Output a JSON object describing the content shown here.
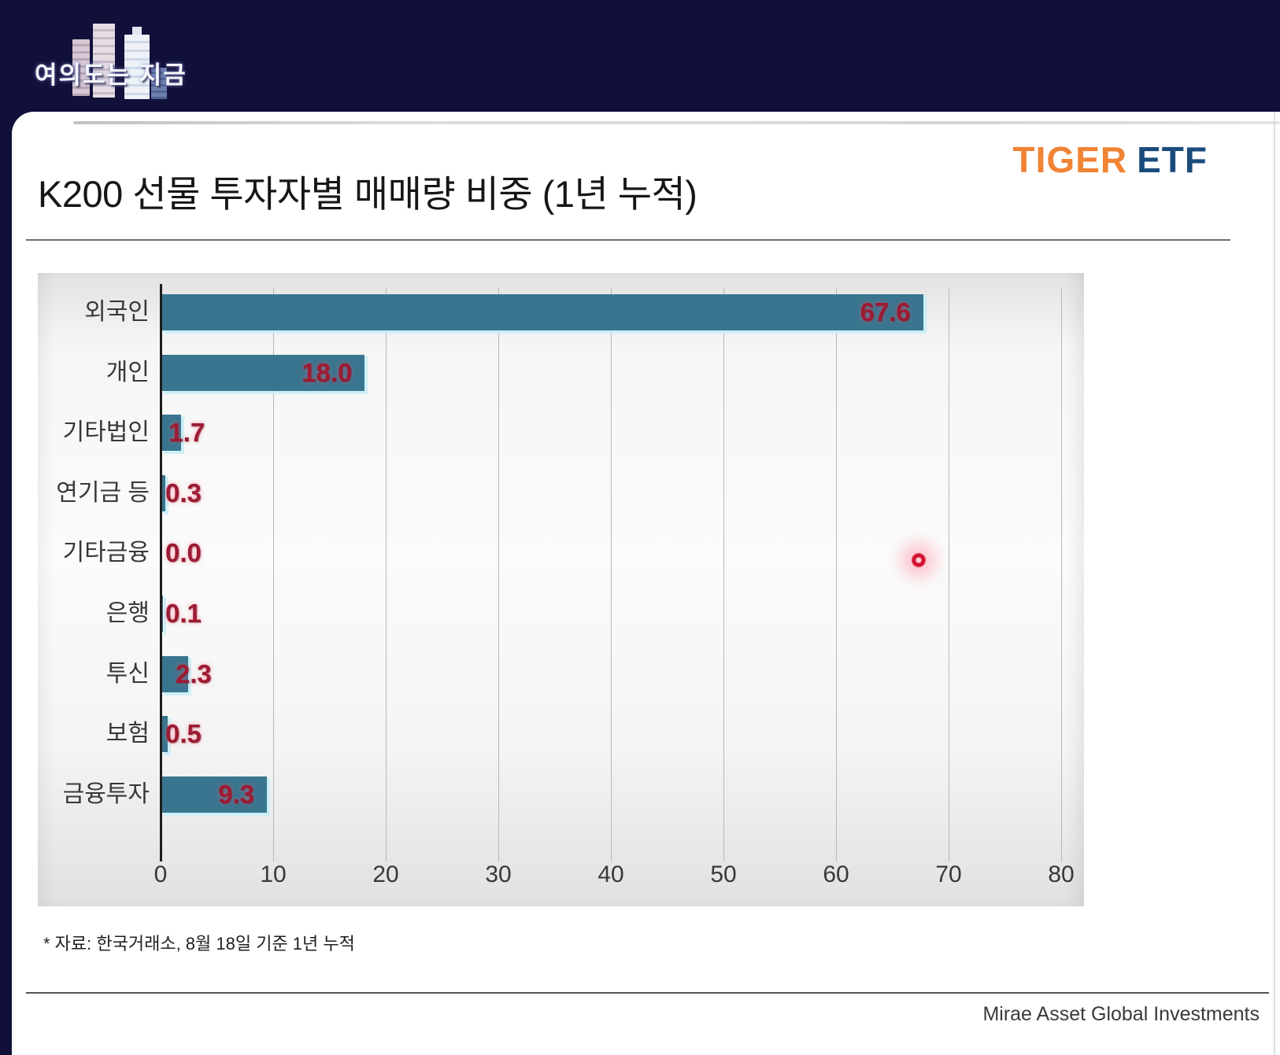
{
  "watermark": {
    "text": "여의도는 지금"
  },
  "brand": {
    "tiger": "TIGER",
    "etf": "ETF",
    "tiger_color": "#F08334",
    "etf_color": "#1B4B7C"
  },
  "header": {
    "title": "K200 선물 투자자별 매매량 비중 (1년 누적)"
  },
  "chart_data": {
    "type": "bar",
    "orientation": "horizontal",
    "title": "K200 선물 투자자별 매매량 비중 (1년 누적)",
    "categories": [
      "외국인",
      "개인",
      "기타법인",
      "연기금 등",
      "기타금융",
      "은행",
      "투신",
      "보험",
      "금융투자"
    ],
    "values": [
      67.6,
      18.0,
      1.7,
      0.3,
      0.0,
      0.1,
      2.3,
      0.5,
      9.3
    ],
    "value_labels": [
      "67.6",
      "18.0",
      "1.7",
      "0.3",
      "0.0",
      "0.1",
      "2.3",
      "0.5",
      "9.3"
    ],
    "xlim": [
      0,
      80
    ],
    "x_tick_labels": [
      "0",
      "10",
      "20",
      "30",
      "40",
      "50",
      "60",
      "70",
      "80"
    ],
    "grid": true,
    "legend": "none",
    "bar_color": "#3A758F",
    "value_label_color": "#9C1B33"
  },
  "annotations": {
    "laser_pointer_color": "#D01030"
  },
  "footnote": {
    "source": "* 자료: 한국거래소, 8월 18일 기준 1년 누적"
  },
  "footer": {
    "company": "Mirae Asset Global Investments"
  }
}
